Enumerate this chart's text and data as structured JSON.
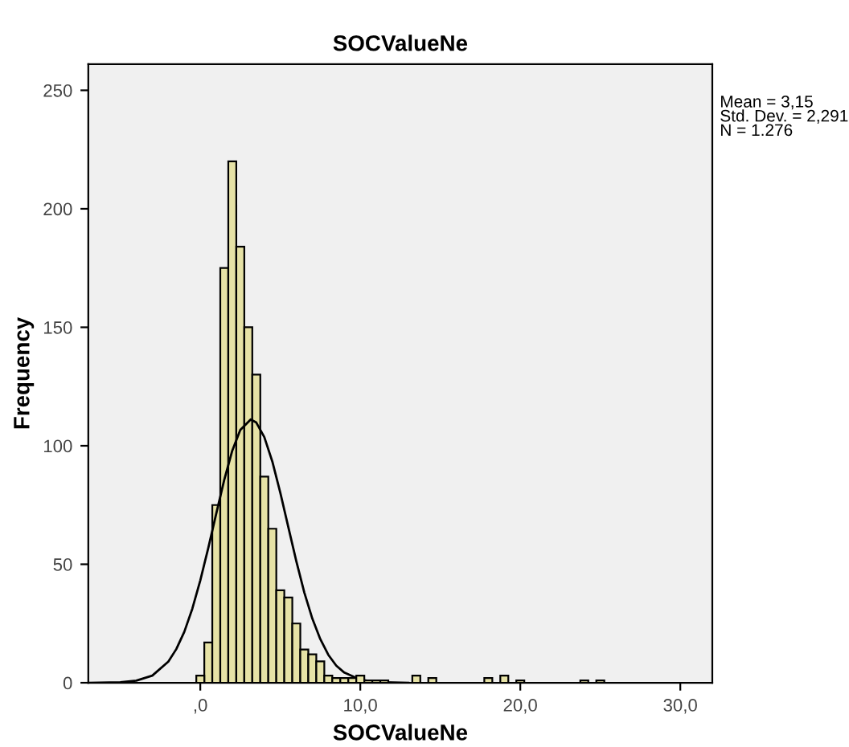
{
  "chart_data": {
    "type": "histogram",
    "title": "SOCValueNe",
    "xlabel": "SOCValueNe",
    "ylabel": "Frequency",
    "series": [
      {
        "type": "histogram",
        "color": "#e6e2a6",
        "bins": [
          -0.25,
          0.25,
          0.75,
          1.25,
          1.75,
          2.25,
          2.75,
          3.25,
          3.75,
          4.25,
          4.75,
          5.25,
          5.75,
          6.25,
          6.75,
          7.25,
          7.75,
          8.25,
          8.75,
          9.25,
          9.75,
          10.25,
          10.75,
          11.25,
          11.75,
          12.25,
          12.75,
          13.25,
          13.75,
          14.25,
          14.75,
          15.25,
          15.75,
          16.25,
          16.75,
          17.25,
          17.75,
          18.25,
          18.75,
          19.25,
          19.75,
          20.25,
          20.75,
          21.25,
          21.75,
          22.25,
          22.75,
          23.25,
          23.75,
          24.25,
          24.75,
          25.25
        ],
        "values": [
          3,
          17,
          75,
          175,
          220,
          184,
          150,
          130,
          87,
          65,
          39,
          36,
          25,
          14,
          12,
          9,
          3,
          2,
          2,
          2,
          3,
          1,
          1,
          1,
          0,
          0,
          0,
          3,
          0,
          2,
          0,
          0,
          0,
          0,
          0,
          0,
          2,
          0,
          3,
          0,
          1,
          0,
          0,
          0,
          0,
          0,
          0,
          0,
          1,
          0,
          1
        ]
      },
      {
        "type": "line",
        "color": "#000000",
        "x": [
          -7,
          -5,
          -4,
          -3,
          -2,
          -1.5,
          -1,
          -0.5,
          0,
          0.5,
          1,
          1.5,
          2,
          2.5,
          3.15,
          3.5,
          4,
          4.5,
          5,
          5.5,
          6,
          6.5,
          7,
          7.5,
          8,
          8.5,
          9,
          10,
          11,
          13
        ],
        "values": [
          0,
          0.2,
          0.9,
          3.0,
          8.9,
          14.2,
          21.5,
          31.2,
          43.2,
          56.9,
          71.5,
          85.7,
          98.0,
          106.7,
          111.1,
          109.8,
          103.7,
          93.4,
          80.2,
          65.7,
          51.3,
          38.1,
          27.1,
          18.4,
          11.8,
          7.2,
          4.3,
          1.3,
          0.3,
          0
        ]
      }
    ],
    "xlim": [
      -7,
      32
    ],
    "xticks": [
      {
        "value": 0,
        "label": ",0"
      },
      {
        "value": 10,
        "label": "10,0"
      },
      {
        "value": 20,
        "label": "20,0"
      },
      {
        "value": 30,
        "label": "30,0"
      }
    ],
    "ylim": [
      0,
      261
    ],
    "yticks": [
      0,
      50,
      100,
      150,
      200,
      250
    ],
    "grid": false,
    "legend": false,
    "annotations": [
      "Mean = 3,15",
      "Std. Dev. = 2,291",
      "N = 1.276"
    ]
  }
}
